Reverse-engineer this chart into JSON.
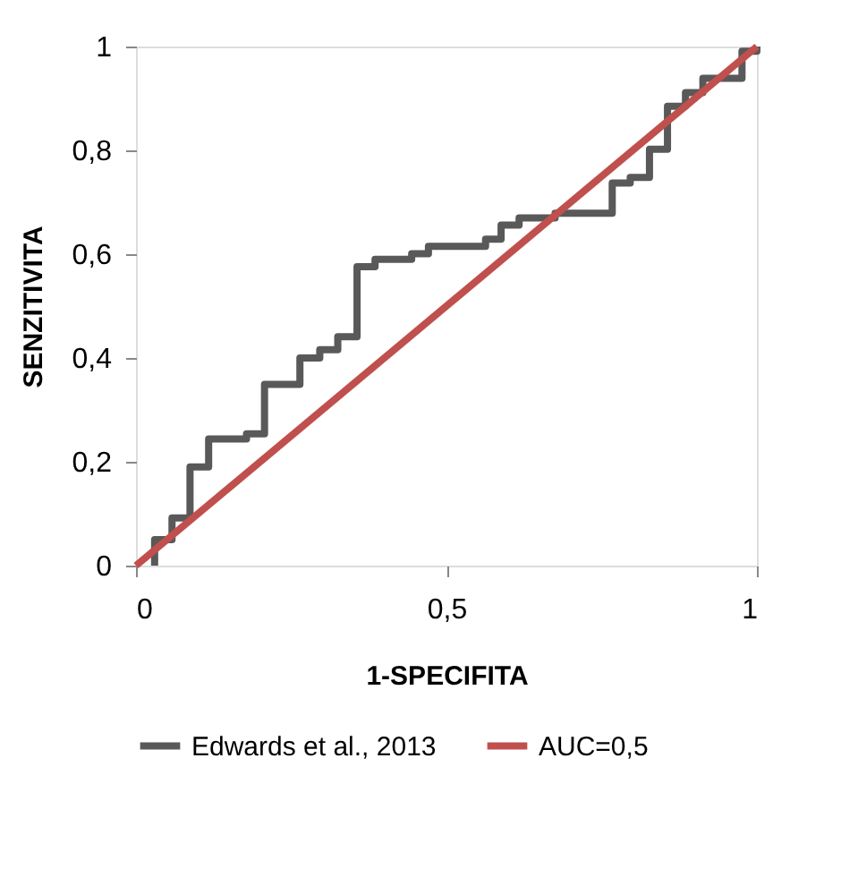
{
  "chart_data": {
    "type": "line",
    "xlabel": "1-SPECIFITA",
    "ylabel": "SENZITIVITA",
    "xlim": [
      0,
      1
    ],
    "ylim": [
      0,
      1
    ],
    "xticks": [
      0,
      {
        "value": 0.5,
        "label": "0,5"
      },
      1
    ],
    "yticks": [
      0,
      {
        "value": 0.2,
        "label": "0,2"
      },
      {
        "value": 0.4,
        "label": "0,4"
      },
      {
        "value": 0.6,
        "label": "0,6"
      },
      {
        "value": 0.8,
        "label": "0,8"
      },
      1
    ],
    "grid": false,
    "legend": "bottom",
    "marker": "none",
    "line_style": "solid",
    "series": [
      {
        "name": "Edwards et al., 2013",
        "color": "#595959",
        "x": [
          0.03,
          0.03,
          0.058,
          0.058,
          0.087,
          0.087,
          0.117,
          0.117,
          0.178,
          0.178,
          0.207,
          0.207,
          0.264,
          0.264,
          0.296,
          0.296,
          0.325,
          0.325,
          0.356,
          0.356,
          0.385,
          0.385,
          0.444,
          0.444,
          0.471,
          0.471,
          0.563,
          0.563,
          0.588,
          0.588,
          0.617,
          0.617,
          0.675,
          0.675,
          0.767,
          0.767,
          0.796,
          0.796,
          0.827,
          0.827,
          0.856,
          0.856,
          0.885,
          0.885,
          0.913,
          0.913,
          0.976,
          0.976,
          1,
          1
        ],
        "values": [
          0,
          0.05,
          0.05,
          0.092,
          0.092,
          0.19,
          0.19,
          0.244,
          0.244,
          0.254,
          0.254,
          0.349,
          0.349,
          0.4,
          0.4,
          0.416,
          0.416,
          0.441,
          0.441,
          0.576,
          0.576,
          0.59,
          0.59,
          0.601,
          0.601,
          0.615,
          0.615,
          0.629,
          0.629,
          0.656,
          0.656,
          0.67,
          0.67,
          0.679,
          0.679,
          0.737,
          0.737,
          0.748,
          0.748,
          0.802,
          0.802,
          0.885,
          0.885,
          0.911,
          0.911,
          0.939,
          0.939,
          0.991,
          0.991,
          1
        ]
      },
      {
        "name": "AUC=0,5",
        "color": "#c0504d",
        "x": [
          0,
          1
        ],
        "values": [
          0,
          1
        ]
      }
    ]
  }
}
